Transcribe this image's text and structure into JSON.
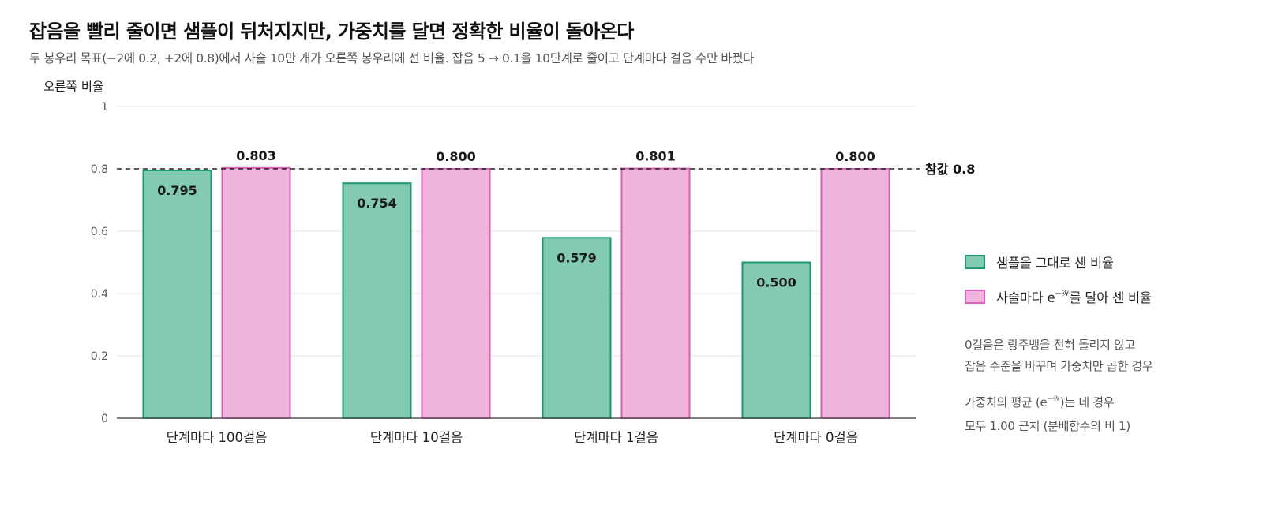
{
  "title": "잡음을 빨리 줄이면 샘플이 뒤처지지만, 가중치를 달면 정확한 비율이 돌아온다",
  "subtitle": "두 봉우리 목표(−2에 0.2, +2에 0.8)에서 사슬 10만 개가 오른쪽 봉우리에 선 비율. 잡음 5 → 0.1을 10단계로 줄이고 단계마다 걸음 수만 바꿨다",
  "colors": {
    "raw_fill": "#82cbb2",
    "raw_stroke": "#1f9a6e",
    "weighted_fill": "#f0b4dc",
    "weighted_stroke": "#d95fb8",
    "axis": "#555555",
    "grid": "#e6e6e6",
    "reference": "#222222"
  },
  "chart_data": {
    "type": "bar",
    "ylabel": "오른쪽 비율",
    "ylim": [
      0,
      1
    ],
    "yticks": [
      "0",
      "0.2",
      "0.4",
      "0.6",
      "0.8",
      "1"
    ],
    "categories": [
      "단계마다 100걸음",
      "단계마다 10걸음",
      "단계마다 1걸음",
      "단계마다 0걸음"
    ],
    "series": [
      {
        "name": "샘플을 그대로 센 비율",
        "values": [
          0.795,
          0.754,
          0.579,
          0.5
        ],
        "labels": [
          "0.795",
          "0.754",
          "0.579",
          "0.500"
        ]
      },
      {
        "name": "사슬마다 e^(−𝒲)를 달아 센 비율",
        "values": [
          0.803,
          0.8,
          0.801,
          0.8
        ],
        "labels": [
          "0.803",
          "0.800",
          "0.801",
          "0.800"
        ]
      }
    ],
    "reference_line": {
      "value": 0.8,
      "label": "참값 0.8"
    },
    "grid": true,
    "legend_position": "right"
  },
  "legend": {
    "raw": "샘플을 그대로 센 비율",
    "weighted_pre": "사슬마다 e",
    "weighted_sup": "−𝒲",
    "weighted_post": "를 달아 센 비율"
  },
  "notes": {
    "note1_line1": "0걸음은 랑주뱅을 전혀 돌리지 않고",
    "note1_line2": "잡음 수준을 바꾸며 가중치만 곱한 경우",
    "note2_pre": "가중치의 평균 (e",
    "note2_sup": "−𝒲",
    "note2_post": ")는 네 경우",
    "note2_line2": "모두 1.00 근처 (분배함수의 비 1)"
  }
}
